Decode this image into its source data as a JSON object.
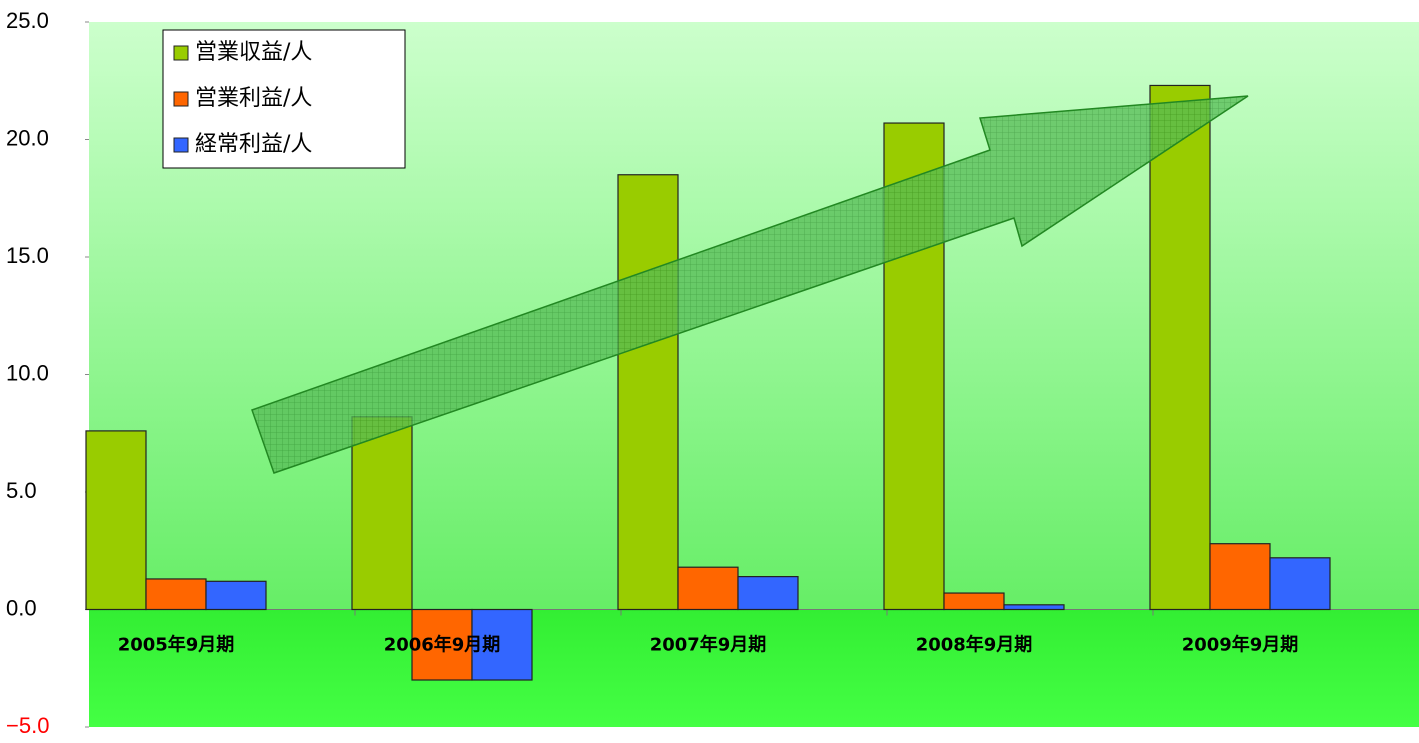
{
  "chart_data": {
    "type": "bar",
    "categories": [
      "2005年9月期",
      "2006年9月期",
      "2007年9月期",
      "2008年9月期",
      "2009年9月期"
    ],
    "series": [
      {
        "name": "営業収益/人",
        "color": "#99cc00",
        "values": [
          7.6,
          8.2,
          18.5,
          20.7,
          22.3
        ]
      },
      {
        "name": "営業利益/人",
        "color": "#ff6600",
        "values": [
          1.3,
          -3.0,
          1.8,
          0.7,
          2.8
        ]
      },
      {
        "name": "経常利益/人",
        "color": "#3366ff",
        "values": [
          1.2,
          -3.0,
          1.4,
          0.2,
          2.2
        ]
      }
    ],
    "ylim": [
      -5,
      25
    ],
    "yticks": [
      {
        "value": -5,
        "label": "−5.0"
      },
      {
        "value": 0,
        "label": "0.0"
      },
      {
        "value": 5,
        "label": "5.0"
      },
      {
        "value": 10,
        "label": "10.0"
      },
      {
        "value": 15,
        "label": "15.0"
      },
      {
        "value": 20,
        "label": "20.0"
      },
      {
        "value": 25,
        "label": "25.0"
      }
    ],
    "legend": "upper left"
  }
}
